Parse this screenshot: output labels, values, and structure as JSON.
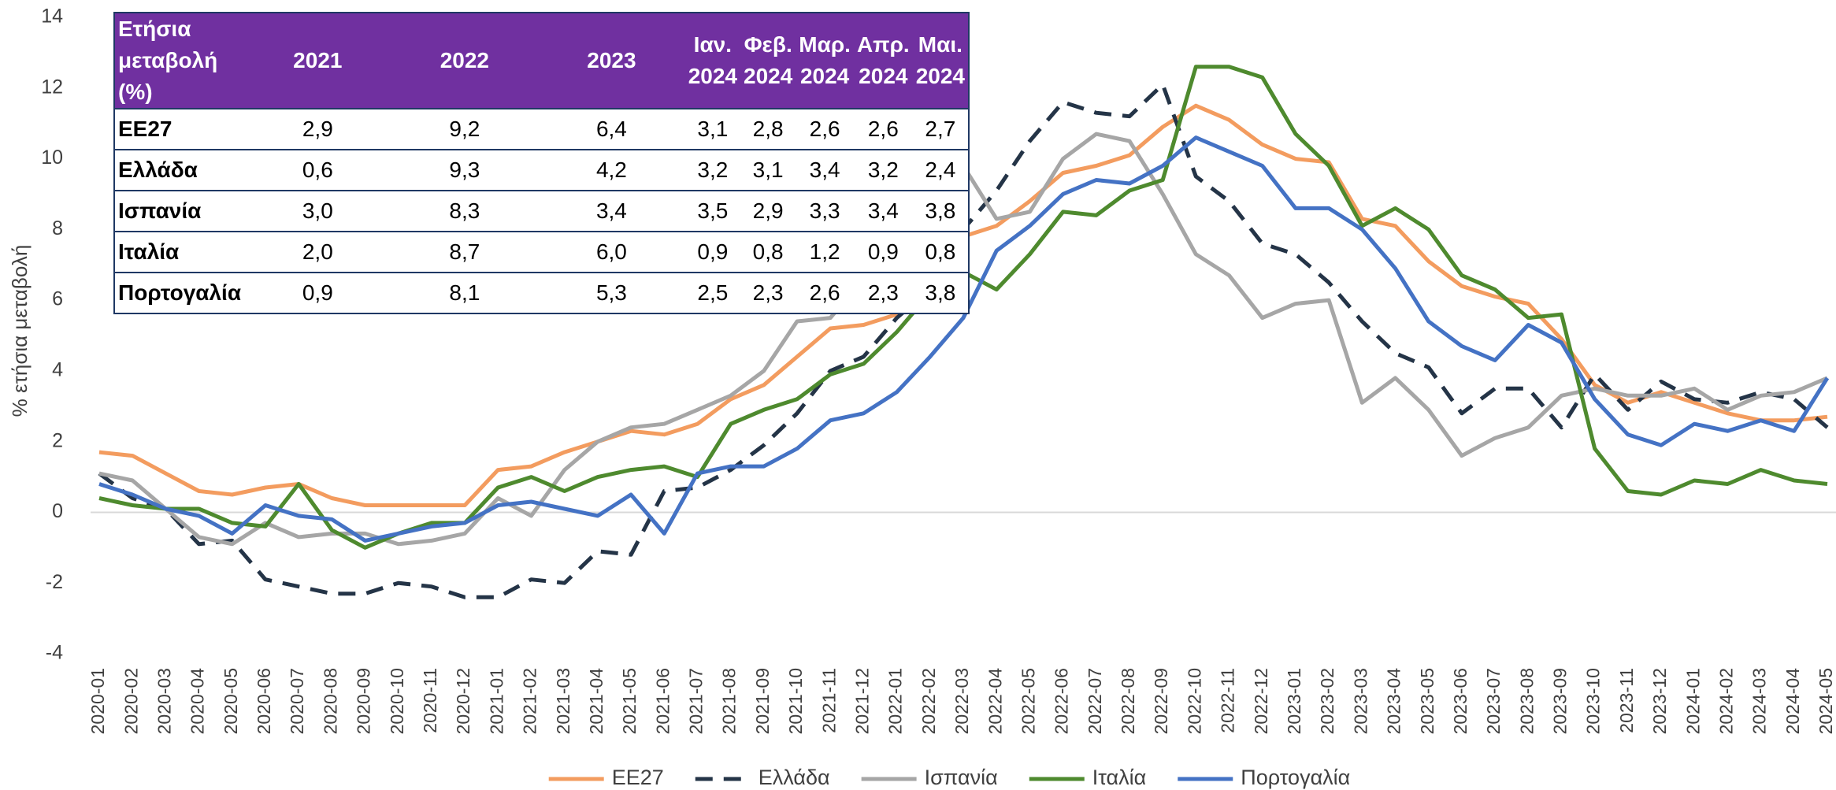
{
  "chart_data": {
    "type": "line",
    "y_label": "% ετήσια μεταβολή",
    "categories": [
      "2020-01",
      "2020-02",
      "2020-03",
      "2020-04",
      "2020-05",
      "2020-06",
      "2020-07",
      "2020-08",
      "2020-09",
      "2020-10",
      "2020-11",
      "2020-12",
      "2021-01",
      "2021-02",
      "2021-03",
      "2021-04",
      "2021-05",
      "2021-06",
      "2021-07",
      "2021-08",
      "2021-09",
      "2021-10",
      "2021-11",
      "2021-12",
      "2022-01",
      "2022-02",
      "2022-03",
      "2022-04",
      "2022-05",
      "2022-06",
      "2022-07",
      "2022-08",
      "2022-09",
      "2022-10",
      "2022-11",
      "2022-12",
      "2023-01",
      "2023-02",
      "2023-03",
      "2023-04",
      "2023-05",
      "2023-06",
      "2023-07",
      "2023-08",
      "2023-09",
      "2023-10",
      "2023-11",
      "2023-12",
      "2024-01",
      "2024-02",
      "2024-03",
      "2024-04",
      "2024-05"
    ],
    "series": [
      {
        "name": "ΕΕ27",
        "color": "#f39c5f",
        "dashed": false,
        "values": [
          1.7,
          1.6,
          1.1,
          0.6,
          0.5,
          0.7,
          0.8,
          0.4,
          0.2,
          0.2,
          0.2,
          0.2,
          1.2,
          1.3,
          1.7,
          2.0,
          2.3,
          2.2,
          2.5,
          3.2,
          3.6,
          4.4,
          5.2,
          5.3,
          5.6,
          6.2,
          7.8,
          8.1,
          8.8,
          9.6,
          9.8,
          10.1,
          10.9,
          11.5,
          11.1,
          10.4,
          10.0,
          9.9,
          8.3,
          8.1,
          7.1,
          6.4,
          6.1,
          5.9,
          4.9,
          3.6,
          3.1,
          3.4,
          3.1,
          2.8,
          2.6,
          2.6,
          2.7
        ]
      },
      {
        "name": "Ελλάδα",
        "color": "#243447",
        "dashed": true,
        "values": [
          1.1,
          0.4,
          0.1,
          -0.9,
          -0.8,
          -1.9,
          -2.1,
          -2.3,
          -2.3,
          -2.0,
          -2.1,
          -2.4,
          -2.4,
          -1.9,
          -2.0,
          -1.1,
          -1.2,
          0.6,
          0.7,
          1.2,
          1.9,
          2.8,
          4.0,
          4.4,
          5.5,
          6.3,
          8.0,
          9.1,
          10.5,
          11.6,
          11.3,
          11.2,
          12.1,
          9.5,
          8.8,
          7.6,
          7.3,
          6.5,
          5.4,
          4.5,
          4.1,
          2.8,
          3.5,
          3.5,
          2.4,
          3.9,
          2.9,
          3.7,
          3.2,
          3.1,
          3.4,
          3.2,
          2.4
        ]
      },
      {
        "name": "Ισπανία",
        "color": "#a6a6a6",
        "dashed": false,
        "values": [
          1.1,
          0.9,
          0.1,
          -0.7,
          -0.9,
          -0.3,
          -0.7,
          -0.6,
          -0.6,
          -0.9,
          -0.8,
          -0.6,
          0.4,
          -0.1,
          1.2,
          2.0,
          2.4,
          2.5,
          2.9,
          3.3,
          4.0,
          5.4,
          5.5,
          6.6,
          6.2,
          7.6,
          9.8,
          8.3,
          8.5,
          10.0,
          10.7,
          10.5,
          9.0,
          7.3,
          6.7,
          5.5,
          5.9,
          6.0,
          3.1,
          3.8,
          2.9,
          1.6,
          2.1,
          2.4,
          3.3,
          3.5,
          3.3,
          3.3,
          3.5,
          2.9,
          3.3,
          3.4,
          3.8
        ]
      },
      {
        "name": "Ιταλία",
        "color": "#4e8a2e",
        "dashed": false,
        "values": [
          0.4,
          0.2,
          0.1,
          0.1,
          -0.3,
          -0.4,
          0.8,
          -0.5,
          -1.0,
          -0.6,
          -0.3,
          -0.3,
          0.7,
          1.0,
          0.6,
          1.0,
          1.2,
          1.3,
          1.0,
          2.5,
          2.9,
          3.2,
          3.9,
          4.2,
          5.1,
          6.2,
          6.8,
          6.3,
          7.3,
          8.5,
          8.4,
          9.1,
          9.4,
          12.6,
          12.6,
          12.3,
          10.7,
          9.8,
          8.1,
          8.6,
          8.0,
          6.7,
          6.3,
          5.5,
          5.6,
          1.8,
          0.6,
          0.5,
          0.9,
          0.8,
          1.2,
          0.9,
          0.8
        ]
      },
      {
        "name": "Πορτογαλία",
        "color": "#4472c4",
        "dashed": false,
        "values": [
          0.8,
          0.5,
          0.1,
          -0.1,
          -0.6,
          0.2,
          -0.1,
          -0.2,
          -0.8,
          -0.6,
          -0.4,
          -0.3,
          0.2,
          0.3,
          0.1,
          -0.1,
          0.5,
          -0.6,
          1.1,
          1.3,
          1.3,
          1.8,
          2.6,
          2.8,
          3.4,
          4.4,
          5.5,
          7.4,
          8.1,
          9.0,
          9.4,
          9.3,
          9.8,
          10.6,
          10.2,
          9.8,
          8.6,
          8.6,
          8.0,
          6.9,
          5.4,
          4.7,
          4.3,
          5.3,
          4.8,
          3.2,
          2.2,
          1.9,
          2.5,
          2.3,
          2.6,
          2.3,
          3.8
        ]
      }
    ],
    "ylim": [
      -4,
      14
    ],
    "yticks": [
      -4,
      -2,
      0,
      2,
      4,
      6,
      8,
      10,
      12,
      14
    ],
    "grid": false,
    "legend": "bottom"
  },
  "table": {
    "header": [
      "Ετήσια μεταβολή (%)",
      "2021",
      "2022",
      "2023",
      "Ιαν. 2024",
      "Φεβ. 2024",
      "Μαρ. 2024",
      "Απρ. 2024",
      "Μαι. 2024"
    ],
    "rows": [
      [
        "ΕΕ27",
        "2,9",
        "9,2",
        "6,4",
        "3,1",
        "2,8",
        "2,6",
        "2,6",
        "2,7"
      ],
      [
        "Ελλάδα",
        "0,6",
        "9,3",
        "4,2",
        "3,2",
        "3,1",
        "3,4",
        "3,2",
        "2,4"
      ],
      [
        "Ισπανία",
        "3,0",
        "8,3",
        "3,4",
        "3,5",
        "2,9",
        "3,3",
        "3,4",
        "3,8"
      ],
      [
        "Ιταλία",
        "2,0",
        "8,7",
        "6,0",
        "0,9",
        "0,8",
        "1,2",
        "0,9",
        "0,8"
      ],
      [
        "Πορτογαλία",
        "0,9",
        "8,1",
        "5,3",
        "2,5",
        "2,3",
        "2,6",
        "2,3",
        "3,8"
      ]
    ]
  }
}
